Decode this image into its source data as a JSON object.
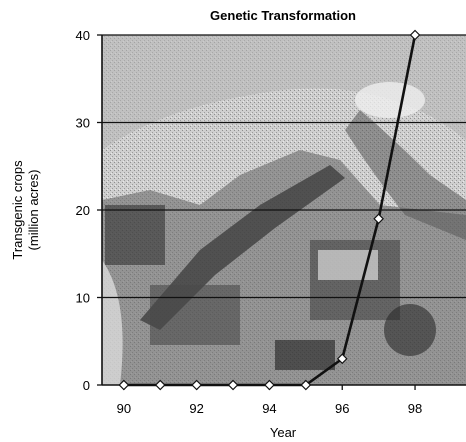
{
  "chart_data": {
    "type": "line",
    "title": "Genetic Transformation",
    "xlabel": "Year",
    "ylabel_line1": "Transgenic crops",
    "ylabel_line2": "(million acres)",
    "xlim": [
      89.4,
      99.4
    ],
    "ylim": [
      0,
      40
    ],
    "xticks": [
      90,
      92,
      94,
      96,
      98
    ],
    "yticks": [
      0,
      10,
      20,
      30,
      40
    ],
    "grid": "horizontal",
    "background": "photo of crop harvesting machinery",
    "series": [
      {
        "x": [
          90,
          91,
          92,
          93,
          94,
          95,
          96,
          97,
          98
        ],
        "y": [
          0,
          0,
          0,
          0,
          0,
          0,
          3,
          19,
          40
        ]
      }
    ],
    "colors": {
      "line": "#111111",
      "marker_fill": "#ffffff",
      "grid": "#111111"
    }
  }
}
